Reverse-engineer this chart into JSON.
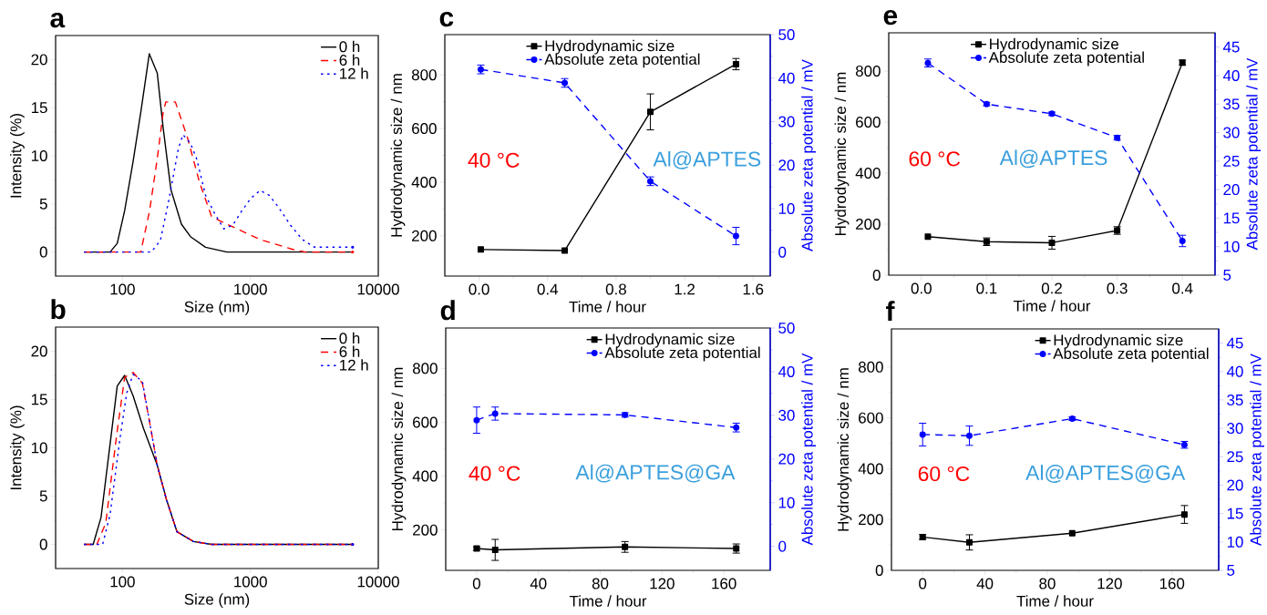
{
  "chart_data": [
    {
      "type": "line",
      "title": "a",
      "xlabel": "Size (nm)",
      "ylabel": "Intensity (%)",
      "log": "x",
      "xlim": [
        30,
        10000
      ],
      "xticks": [
        100,
        1000,
        10000
      ],
      "ylim": [
        -2.5,
        22.5
      ],
      "yticks": [
        0,
        5,
        10,
        15,
        20
      ],
      "legend": "top right",
      "marker": "none",
      "series": [
        {
          "name": "0 h",
          "color": "#000000",
          "line_style": "solid",
          "x": [
            50,
            80,
            91,
            104,
            121,
            140,
            162,
            187,
            208,
            239,
            289,
            340,
            446,
            654,
            6300
          ],
          "values": [
            0,
            0,
            0.9,
            4.3,
            9.4,
            14.8,
            20.6,
            18.6,
            12.9,
            6.5,
            2.9,
            1.6,
            0.5,
            0,
            0
          ]
        },
        {
          "name": "6 h",
          "color": "#ff0000",
          "line_style": "dashed",
          "x": [
            50,
            139,
            163,
            187,
            208,
            218,
            259,
            322,
            401,
            497,
            586,
            1191,
            2228,
            2700,
            6300
          ],
          "values": [
            0,
            0,
            4.3,
            9.7,
            14.5,
            15.6,
            15.6,
            11.9,
            7.2,
            3.7,
            3.2,
            1.3,
            0.2,
            0,
            0
          ]
        },
        {
          "name": "12 h",
          "color": "#0000ff",
          "line_style": "dotted",
          "x": [
            50,
            168,
            198,
            232,
            273,
            297,
            340,
            380,
            446,
            526,
            619,
            729,
            859,
            1011,
            1191,
            1402,
            1651,
            2053,
            2551,
            3171,
            4395,
            5768,
            6300
          ],
          "values": [
            0,
            0,
            1.2,
            5.6,
            10.7,
            12.2,
            11.3,
            9.7,
            5.9,
            4.0,
            2.4,
            2.8,
            4.3,
            5.6,
            6.4,
            5.9,
            4.7,
            2.8,
            1.3,
            0.5,
            0.5,
            0.5,
            0.5
          ]
        }
      ]
    },
    {
      "type": "line",
      "title": "b",
      "xlabel": "Size (nm)",
      "ylabel": "Intensity (%)",
      "log": "x",
      "xlim": [
        30,
        10000
      ],
      "xticks": [
        100,
        1000,
        10000
      ],
      "ylim": [
        -2.5,
        22.5
      ],
      "yticks": [
        0,
        5,
        10,
        15,
        20
      ],
      "legend": "top right",
      "marker": "none",
      "series": [
        {
          "name": "0 h",
          "color": "#000000",
          "line_style": "solid",
          "x": [
            50,
            59,
            68,
            91,
            104,
            121,
            146,
            187,
            220,
            267,
            359,
            497,
            6300
          ],
          "values": [
            0,
            0,
            2.8,
            16.4,
            17.5,
            15.4,
            12.0,
            8.2,
            4.7,
            1.3,
            0.3,
            0,
            0
          ]
        },
        {
          "name": "6 h",
          "color": "#ff0000",
          "line_style": "dashed",
          "x": [
            50,
            63,
            74,
            90,
            104,
            121,
            143,
            168,
            187,
            220,
            267,
            359,
            497,
            6300
          ],
          "values": [
            0,
            0,
            2.2,
            11.3,
            17.3,
            17.8,
            16.7,
            11.7,
            8.2,
            4.7,
            1.3,
            0.3,
            0,
            0
          ]
        },
        {
          "name": "12 h",
          "color": "#0000ff",
          "line_style": "dotted",
          "x": [
            50,
            70,
            80,
            95,
            108,
            121,
            143,
            168,
            187,
            220,
            267,
            359,
            497,
            6300
          ],
          "values": [
            0,
            0,
            3.1,
            10.7,
            15.7,
            17.6,
            16.9,
            11.7,
            8.2,
            4.7,
            1.3,
            0.3,
            0,
            0
          ]
        }
      ]
    },
    {
      "type": "line",
      "title": "c",
      "xlabel": "Time / hour",
      "ylabel": "Hydrodynamic size / nm",
      "y2label": "Absolute zeta potential / mV",
      "xlim": [
        -0.2,
        1.7
      ],
      "xticks": [
        {
          "value": 0,
          "label": "0.0"
        },
        0.4,
        0.8,
        1.2,
        1.6
      ],
      "ylim": [
        50,
        950
      ],
      "yticks": [
        200,
        400,
        600,
        800
      ],
      "y2lim": [
        -5.5,
        50
      ],
      "y2ticks": [
        0,
        10,
        20,
        30,
        40,
        50
      ],
      "legend": "top",
      "annotations": [
        "40 °C",
        "Al@APTES"
      ],
      "series": [
        {
          "name": "Hydrodynamic size",
          "color": "#000000",
          "marker": "square",
          "line_style": "solid",
          "x": [
            0.01,
            0.5,
            1.0,
            1.5
          ],
          "values": [
            149,
            145,
            662,
            840
          ],
          "errors": [
            null,
            null,
            67,
            21
          ]
        },
        {
          "name": "Absolute zeta potential",
          "color": "#0000ff",
          "marker": "circle",
          "line_style": "dashed",
          "axis": "y2",
          "x": [
            0.01,
            0.5,
            1.0,
            1.5
          ],
          "values": [
            42.0,
            38.9,
            16.3,
            3.7
          ],
          "errors": [
            1,
            1,
            1,
            2
          ]
        }
      ]
    },
    {
      "type": "line",
      "title": "d",
      "xlabel": "Time / hour",
      "ylabel": "Hydrodynamic size / nm",
      "y2label": "Absolute zeta potential / mV",
      "xlim": [
        -20,
        190
      ],
      "xticks": [
        0,
        40,
        80,
        120,
        160
      ],
      "ylim": [
        50,
        950
      ],
      "yticks": [
        200,
        400,
        600,
        800
      ],
      "y2lim": [
        -5.5,
        50
      ],
      "y2ticks": [
        0,
        10,
        20,
        30,
        40,
        50
      ],
      "legend": "top right",
      "annotations": [
        "40 °C",
        "Al@APTES@GA"
      ],
      "series": [
        {
          "name": "Hydrodynamic size",
          "color": "#000000",
          "marker": "square",
          "line_style": "solid",
          "x": [
            0,
            12,
            96,
            168
          ],
          "values": [
            131,
            126,
            137,
            131
          ],
          "errors": [
            7,
            39,
            20,
            17
          ]
        },
        {
          "name": "Absolute zeta potential",
          "color": "#0000ff",
          "marker": "circle",
          "line_style": "dashed",
          "axis": "y2",
          "x": [
            0,
            12,
            96,
            168
          ],
          "values": [
            28.9,
            30.4,
            30.1,
            27.2
          ],
          "errors": [
            3,
            1.5,
            0.5,
            1
          ]
        }
      ]
    },
    {
      "type": "line",
      "title": "e",
      "xlabel": "Time / hour",
      "ylabel": "Hydrodynamic size / nm",
      "y2label": "Absolute zeta potential / mV",
      "xlim": [
        -0.05,
        0.45
      ],
      "xticks": [
        {
          "value": 0,
          "label": "0.0"
        },
        0.1,
        0.2,
        0.3,
        0.4
      ],
      "ylim": [
        0,
        950
      ],
      "yticks": [
        0,
        200,
        400,
        600,
        800
      ],
      "y2lim": [
        5,
        47.5
      ],
      "y2ticks": [
        5,
        10,
        15,
        20,
        25,
        30,
        35,
        40,
        45
      ],
      "legend": "top",
      "annotations": [
        "60 °C",
        "Al@APTES"
      ],
      "series": [
        {
          "name": "Hydrodynamic size",
          "color": "#000000",
          "marker": "square",
          "line_style": "solid",
          "x": [
            0.01,
            0.1,
            0.2,
            0.3,
            0.4
          ],
          "values": [
            151,
            131,
            127,
            175,
            833
          ],
          "errors": [
            null,
            15,
            25,
            15,
            10
          ]
        },
        {
          "name": "Absolute zeta potential",
          "color": "#0000ff",
          "marker": "circle",
          "line_style": "dashed",
          "axis": "y2",
          "x": [
            0.01,
            0.1,
            0.2,
            0.3,
            0.4
          ],
          "values": [
            42.2,
            35.0,
            33.3,
            29.1,
            11.0
          ],
          "errors": [
            0.7,
            0.3,
            0.3,
            0.4,
            1.0
          ]
        }
      ]
    },
    {
      "type": "line",
      "title": "f",
      "xlabel": "Time / hour",
      "ylabel": "Hydrodynamic size / nm",
      "y2label": "Absolute zeta potential / mV",
      "xlim": [
        -20,
        190
      ],
      "xticks": [
        0,
        40,
        80,
        120,
        160
      ],
      "ylim": [
        0,
        950
      ],
      "yticks": [
        0,
        200,
        400,
        600,
        800
      ],
      "y2lim": [
        5,
        47.5
      ],
      "y2ticks": [
        5,
        10,
        15,
        20,
        25,
        30,
        35,
        40,
        45
      ],
      "legend": "top right",
      "annotations": [
        "60 °C",
        "Al@APTES@GA"
      ],
      "series": [
        {
          "name": "Hydrodynamic size",
          "color": "#000000",
          "marker": "square",
          "line_style": "solid",
          "x": [
            0,
            30,
            96,
            168
          ],
          "values": [
            131,
            110,
            146,
            220
          ],
          "errors": [
            10,
            30,
            null,
            35
          ]
        },
        {
          "name": "Absolute zeta potential",
          "color": "#0000ff",
          "marker": "circle",
          "line_style": "dashed",
          "axis": "y2",
          "x": [
            0,
            30,
            96,
            168
          ],
          "values": [
            28.9,
            28.7,
            31.7,
            27.1
          ],
          "errors": [
            2,
            1.7,
            0.3,
            0.6
          ]
        }
      ]
    }
  ]
}
